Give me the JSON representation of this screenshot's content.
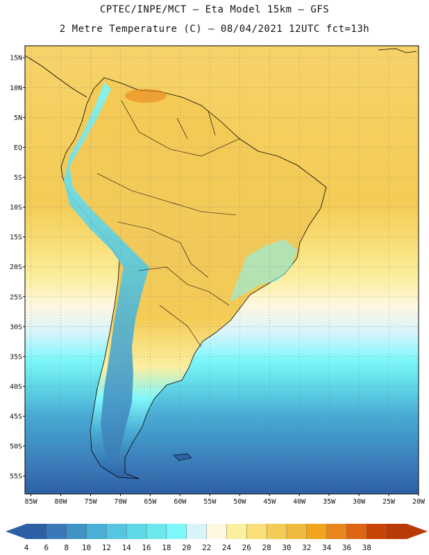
{
  "header": {
    "line1": "CPTEC/INPE/MCT –  Eta Model 15km – GFS",
    "line2": "2 Metre Temperature (C) – 08/04/2021 12UTC fct=13h"
  },
  "map": {
    "lon_range": [
      -86,
      -20
    ],
    "lat_range": [
      -58,
      17
    ],
    "lat_ticks": [
      "15N",
      "10N",
      "5N",
      "EQ",
      "5S",
      "10S",
      "15S",
      "20S",
      "25S",
      "30S",
      "35S",
      "40S",
      "45S",
      "50S",
      "55S"
    ],
    "lat_tick_values": [
      15,
      10,
      5,
      0,
      -5,
      -10,
      -15,
      -20,
      -25,
      -30,
      -35,
      -40,
      -45,
      -50,
      -55
    ],
    "lon_ticks": [
      "85W",
      "80W",
      "75W",
      "70W",
      "65W",
      "60W",
      "55W",
      "50W",
      "45W",
      "40W",
      "35W",
      "30W",
      "25W",
      "20W"
    ],
    "lon_tick_values": [
      -85,
      -80,
      -75,
      -70,
      -65,
      -60,
      -55,
      -50,
      -45,
      -40,
      -35,
      -30,
      -25,
      -20
    ]
  },
  "colorbar": {
    "labels": [
      "4",
      "6",
      "8",
      "10",
      "12",
      "14",
      "16",
      "18",
      "20",
      "22",
      "24",
      "26",
      "28",
      "30",
      "32",
      "34",
      "36",
      "38"
    ],
    "colors": [
      "#2c5fa4",
      "#3a79b8",
      "#3f93c7",
      "#4aaed6",
      "#55c6df",
      "#5fd8e6",
      "#6be7ee",
      "#7ff8fb",
      "#d8f4fb",
      "#fff7e0",
      "#fcefa0",
      "#f9e07a",
      "#f4cb55",
      "#efba3e",
      "#f2a51c",
      "#e9861c",
      "#df6414",
      "#c94507",
      "#b83a06"
    ],
    "low_arrow_color": "#2c5fa4",
    "high_arrow_color": "#b83a06"
  },
  "field_colors": {
    "ocean_warm": "#f6d36a",
    "ocean_mid": "#fcefa0",
    "ocean_cool": "#d8f4fb",
    "ocean_cold": "#5fd8e6",
    "ocean_colder": "#3f93c7",
    "ocean_coldest": "#2c5fa4",
    "land_base": "#f1c95a",
    "andes": "#55c6df",
    "coastline": "#000000"
  }
}
